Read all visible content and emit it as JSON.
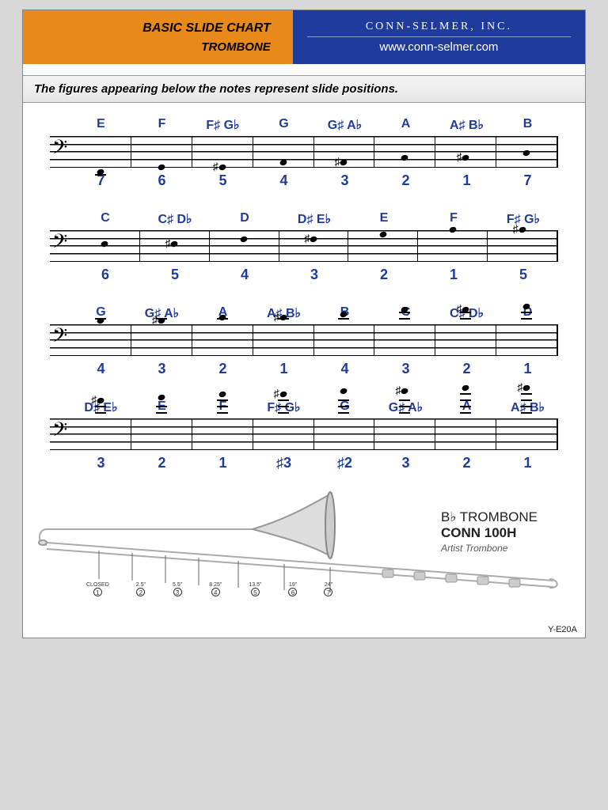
{
  "header": {
    "title1": "BASIC SLIDE CHART",
    "title2": "TROMBONE",
    "company": "CONN-SELMER, INC.",
    "url": "www.conn-selmer.com"
  },
  "subtitle": "The figures appearing below the notes represent slide positions.",
  "colors": {
    "orange": "#e88a1a",
    "blue": "#1f3b9c",
    "note_label": "#1f3b9c"
  },
  "rows": [
    {
      "notes": [
        "E",
        "F",
        "F♯ G♭",
        "G",
        "G♯ A♭",
        "A",
        "A♯ B♭",
        "B"
      ],
      "positions": [
        "7",
        "6",
        "5",
        "4",
        "3",
        "2",
        "1",
        "7"
      ],
      "y": [
        42,
        36,
        36,
        30,
        30,
        24,
        24,
        18
      ],
      "acc": [
        "",
        "",
        "♯♭",
        "",
        "♯♭",
        "",
        "♯♭",
        ""
      ]
    },
    {
      "notes": [
        "C",
        "C♯ D♭",
        "D",
        "D♯ E♭",
        "E",
        "F",
        "F♯ G♭"
      ],
      "positions": [
        "6",
        "5",
        "4",
        "3",
        "2",
        "1",
        "5"
      ],
      "y": [
        14,
        14,
        8,
        8,
        2,
        -4,
        -4
      ],
      "acc": [
        "",
        "♯♭",
        "",
        "♯♭",
        "",
        "",
        "♯♭"
      ]
    },
    {
      "notes": [
        "G",
        "G♯ A♭",
        "A",
        "A♯ B♭",
        "B",
        "C",
        "C♯ D♭",
        "D"
      ],
      "positions": [
        "4",
        "3",
        "2",
        "1",
        "4",
        "3",
        "2",
        "1"
      ],
      "y": [
        -8,
        -8,
        -12,
        -12,
        -16,
        -22,
        -22,
        -26
      ],
      "acc": [
        "",
        "♯♭",
        "",
        "♯♭",
        "",
        "",
        "♯♭",
        ""
      ]
    },
    {
      "notes": [
        "D♯ E♭",
        "E",
        "F",
        "F♯ G♭",
        "G",
        "G♯ A♭",
        "A",
        "A♯ B♭"
      ],
      "positions": [
        "3",
        "2",
        "1",
        "♯3",
        "♯2",
        "3",
        "2",
        "1"
      ],
      "y": [
        -26,
        -30,
        -34,
        -34,
        -38,
        -38,
        -42,
        -42
      ],
      "acc": [
        "♯♭",
        "",
        "",
        "♯♭",
        "",
        "♯♭",
        "",
        "♯♭"
      ]
    }
  ],
  "instrument": {
    "line1": "B♭ TROMBONE",
    "line2": "CONN 100H",
    "line3": "Artist Trombone"
  },
  "slide_positions": [
    {
      "n": "1",
      "d": "CLOSED"
    },
    {
      "n": "2",
      "d": "2.5\""
    },
    {
      "n": "3",
      "d": "5.5\""
    },
    {
      "n": "4",
      "d": "8.25\""
    },
    {
      "n": "5",
      "d": "13.5\""
    },
    {
      "n": "6",
      "d": "19\""
    },
    {
      "n": "7",
      "d": "24\""
    }
  ],
  "code": "Y-E20A"
}
